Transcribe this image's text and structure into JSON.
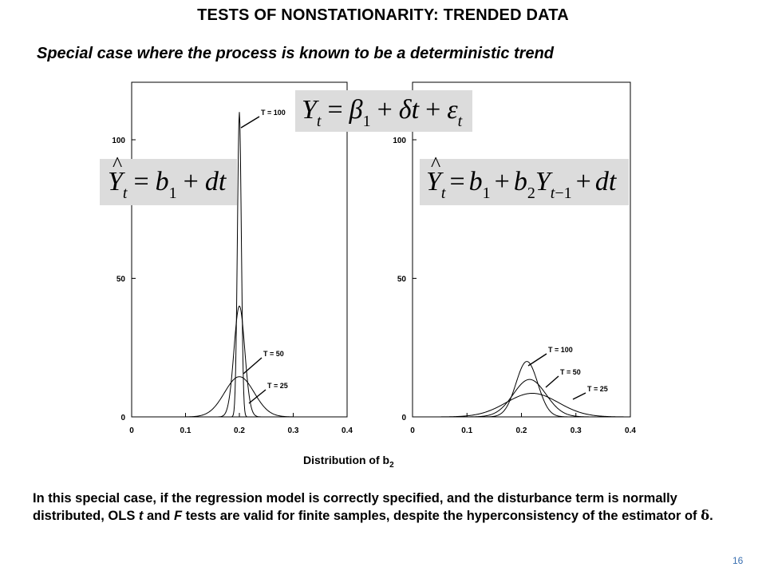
{
  "slide": {
    "title": "TESTS OF NONSTATIONARITY: TRENDED DATA",
    "subtitle": "Special case where the process is known to be a deterministic trend",
    "xcaption_main": "Distribution of b",
    "xcaption_sub": "2",
    "body": "In this special case, if the regression model is correctly specified, and the disturbance term is normally distributed, OLS t and F tests are valid for finite samples, despite the hyperconsistency of the estimator of δ.",
    "page_number": "16"
  },
  "equations": {
    "true_model": "Y_t = β_1 + δt + ε_t",
    "left_model": "Ŷ_t = b_1 + dt",
    "right_model": "Ŷ_t = b_1 + b_2Y_t−1 + dt"
  },
  "chart_data": [
    {
      "type": "line",
      "panel": "left",
      "xlim": [
        0,
        0.4
      ],
      "ylim": [
        0,
        120
      ],
      "xticks": [
        "0",
        "0.1",
        "0.2",
        "0.3",
        "0.4"
      ],
      "yticks": [
        "0",
        "50",
        "100"
      ],
      "series": [
        {
          "name": "T = 25",
          "mean": 0.2,
          "peak": 14.5,
          "sd": 0.0275
        },
        {
          "name": "T = 50",
          "mean": 0.2,
          "peak": 40,
          "sd": 0.01
        },
        {
          "name": "T = 100",
          "mean": 0.2,
          "peak": 110,
          "sd": 0.0036
        }
      ]
    },
    {
      "type": "line",
      "panel": "right",
      "xlim": [
        0,
        0.4
      ],
      "ylim": [
        0,
        120
      ],
      "xticks": [
        "0",
        "0.1",
        "0.2",
        "0.3",
        "0.4"
      ],
      "yticks": [
        "0",
        "50",
        "100"
      ],
      "series": [
        {
          "name": "T = 25",
          "mean": 0.22,
          "peak": 8.5,
          "sd": 0.048
        },
        {
          "name": "T = 50",
          "mean": 0.215,
          "peak": 13.5,
          "sd": 0.03
        },
        {
          "name": "T = 100",
          "mean": 0.21,
          "peak": 20,
          "sd": 0.02
        }
      ]
    }
  ]
}
